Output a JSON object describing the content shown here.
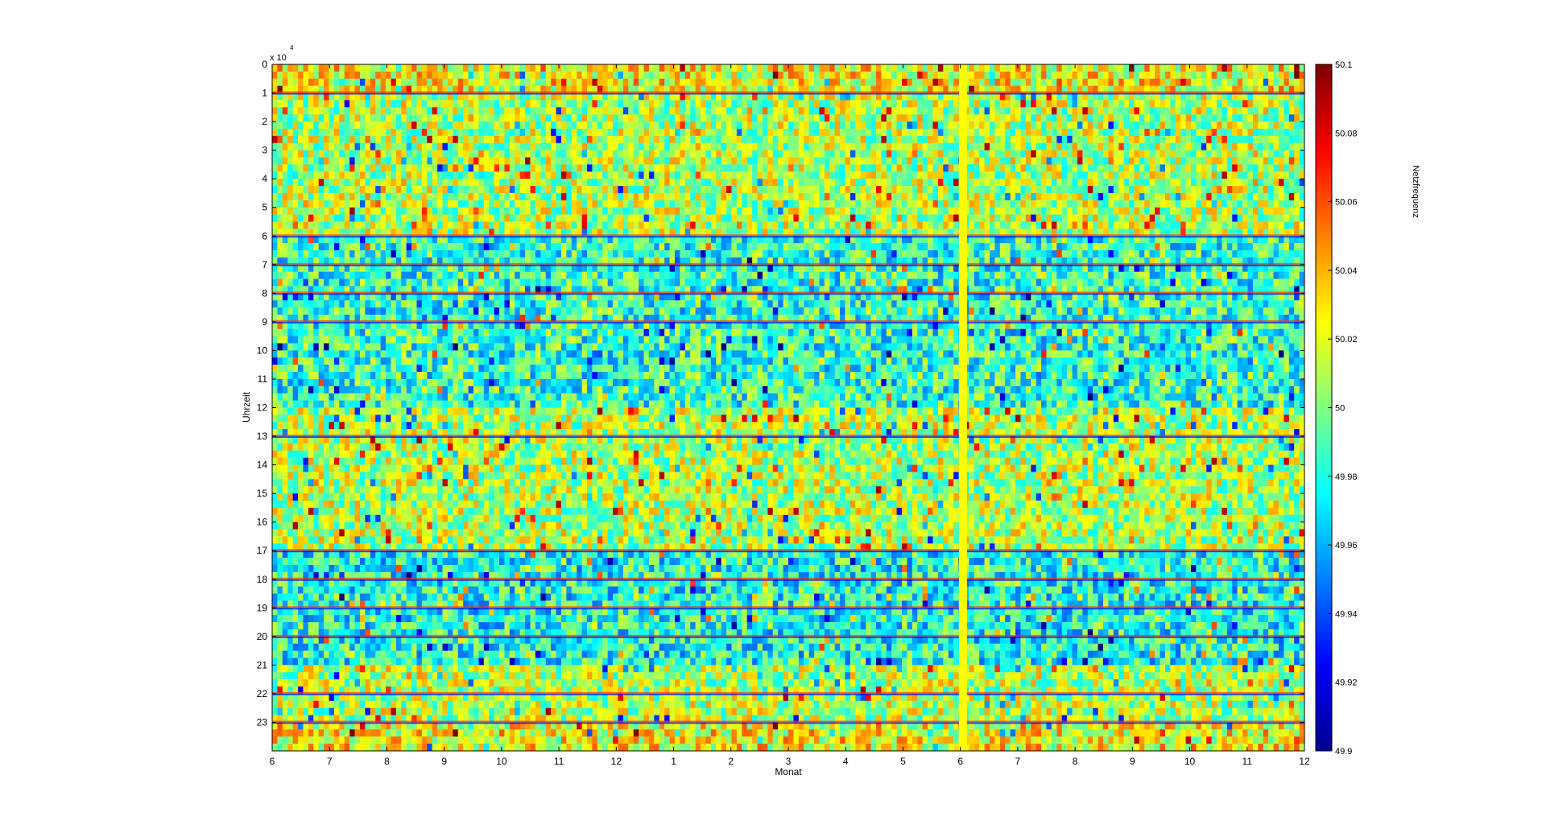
{
  "chart_data": {
    "type": "heatmap",
    "xlabel": "Monat",
    "ylabel": "Uhrzeit",
    "y_multiplier_label": "x 10",
    "y_multiplier_exponent": "4",
    "x_ticks": [
      "6",
      "7",
      "8",
      "9",
      "10",
      "11",
      "12",
      "1",
      "2",
      "3",
      "4",
      "5",
      "6",
      "7",
      "8",
      "9",
      "10",
      "11",
      "12"
    ],
    "y_ticks": [
      "0",
      "1",
      "2",
      "3",
      "4",
      "5",
      "6",
      "7",
      "8",
      "9",
      "10",
      "11",
      "12",
      "13",
      "14",
      "15",
      "16",
      "17",
      "18",
      "19",
      "20",
      "21",
      "22",
      "23"
    ],
    "colorbar": {
      "label": "Netzfrequenz",
      "ticks": [
        "50.1",
        "50.08",
        "50.06",
        "50.04",
        "50.02",
        "50",
        "49.98",
        "49.96",
        "49.94",
        "49.92",
        "49.9"
      ],
      "range": [
        49.9,
        50.1
      ],
      "colormap": "jet"
    },
    "grid": false
  }
}
